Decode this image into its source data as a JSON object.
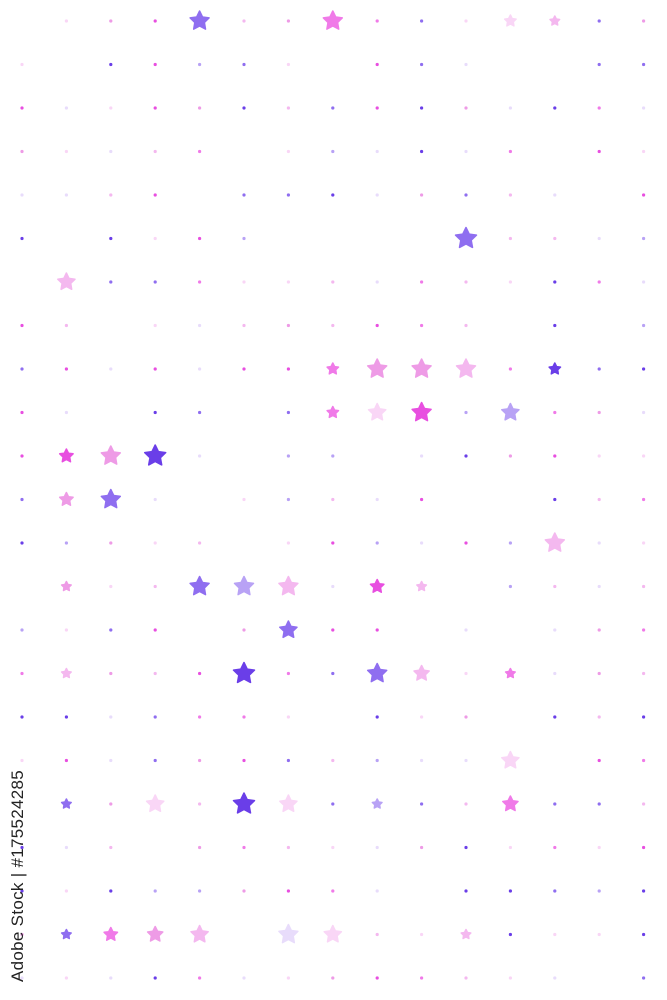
{
  "watermark": {
    "text": "Adobe Stock | #175524285"
  },
  "palette": [
    "#6a3ee8",
    "#8f6ef0",
    "#b8a2f5",
    "#f07ae8",
    "#ee9be6",
    "#f4b8ef",
    "#f9d6f6",
    "#e84fe0",
    "#e8dcfb"
  ],
  "background": "#ffffff",
  "icons": {
    "big": "star-icon",
    "small": "dot-icon"
  }
}
